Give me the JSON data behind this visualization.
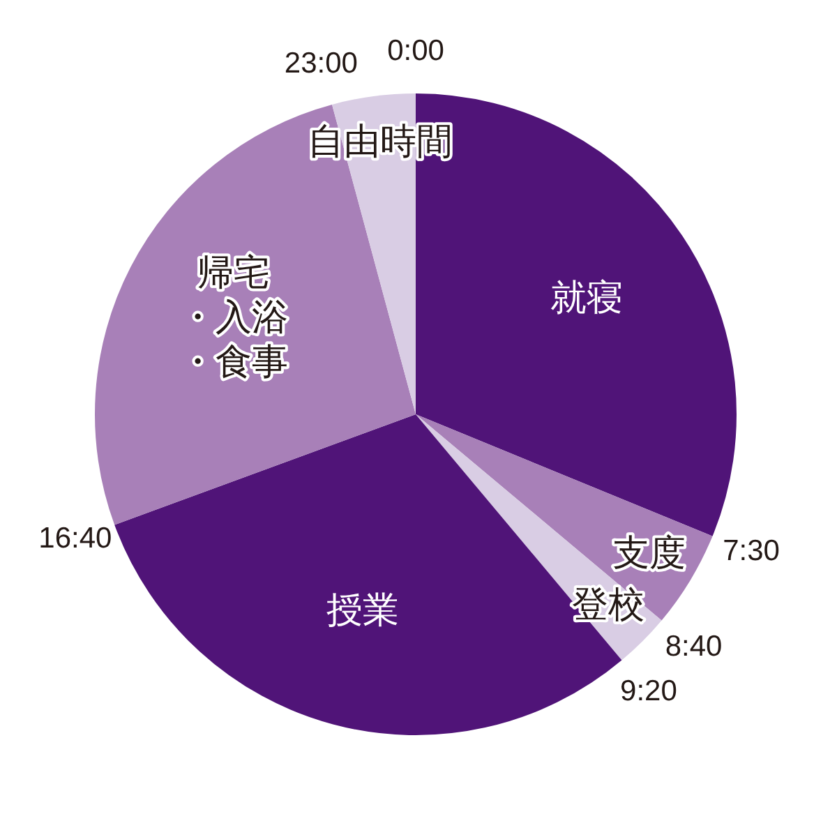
{
  "chart_data": {
    "type": "pie",
    "categories": [
      "就寝",
      "支度",
      "登校",
      "授業",
      "帰宅・入浴・食事",
      "自由時間"
    ],
    "values": [
      31.2,
      4.9,
      2.8,
      30.5,
      26.4,
      4.2
    ],
    "colors": [
      "#501478",
      "#a880b8",
      "#d9cde4",
      "#501478",
      "#a880b8",
      "#d9cde4"
    ],
    "annotations": [
      "0:00",
      "7:30",
      "8:40",
      "9:20",
      "16:40",
      "23:00"
    ]
  }
}
